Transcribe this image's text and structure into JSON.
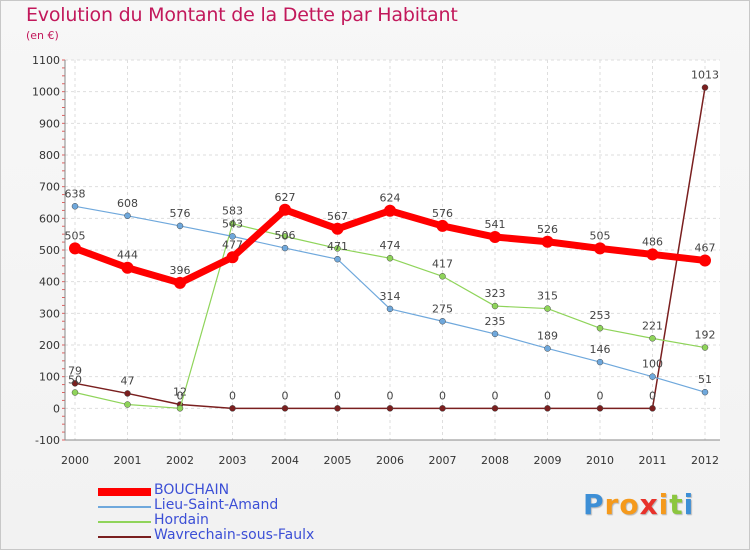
{
  "chart_data": {
    "type": "line",
    "title": "Evolution du Montant de la Dette par Habitant",
    "subtitle": "(en €)",
    "x": [
      "2000",
      "2001",
      "2002",
      "2003",
      "2004",
      "2005",
      "2006",
      "2007",
      "2008",
      "2009",
      "2010",
      "2011",
      "2012"
    ],
    "ylim": [
      -100,
      1100
    ],
    "yticks": [
      "-100",
      "0",
      "100",
      "200",
      "300",
      "400",
      "500",
      "600",
      "700",
      "800",
      "900",
      "1000",
      "1100"
    ],
    "grid": true,
    "legend_placement": "bottom-left",
    "series": [
      {
        "name": "BOUCHAIN",
        "color": "#ff0000",
        "values": [
          505,
          444,
          396,
          477,
          627,
          567,
          624,
          576,
          541,
          526,
          505,
          486,
          467
        ],
        "labels": [
          "505",
          "444",
          "396",
          "477",
          "627",
          "567",
          "624",
          "576",
          "541",
          "526",
          "505",
          "486",
          "467"
        ]
      },
      {
        "name": "Lieu-Saint-Amand",
        "color": "#6fa8dc",
        "values": [
          638,
          608,
          576,
          543,
          506,
          471,
          314,
          275,
          235,
          189,
          146,
          100,
          51
        ],
        "labels": [
          "638",
          "608",
          "576",
          "543",
          "506",
          "471",
          "314",
          "275",
          "235",
          "189",
          "146",
          "100",
          "51"
        ]
      },
      {
        "name": "Hordain",
        "color": "#8fd45a",
        "values": [
          50,
          12,
          0,
          583,
          543,
          505,
          474,
          417,
          323,
          315,
          253,
          221,
          192
        ],
        "labels": [
          "50",
          "",
          "0",
          "583",
          "",
          "",
          "474",
          "417",
          "323",
          "315",
          "253",
          "221",
          "192"
        ]
      },
      {
        "name": "Wavrechain-sous-Faulx",
        "color": "#7a1f1f",
        "values": [
          79,
          47,
          12,
          0,
          0,
          0,
          0,
          0,
          0,
          0,
          0,
          0,
          1013
        ],
        "labels": [
          "79",
          "47",
          "12",
          "0",
          "0",
          "0",
          "0",
          "0",
          "0",
          "0",
          "0",
          "0",
          "1013"
        ]
      }
    ]
  },
  "logo": {
    "letters": [
      "P",
      "r",
      "o",
      "x",
      "i",
      "t",
      "i"
    ],
    "colors": [
      "#3d8fd6",
      "#f59a1c",
      "#f59a1c",
      "#e8312a",
      "#f59a1c",
      "#8cc63f",
      "#3d8fd6"
    ]
  }
}
